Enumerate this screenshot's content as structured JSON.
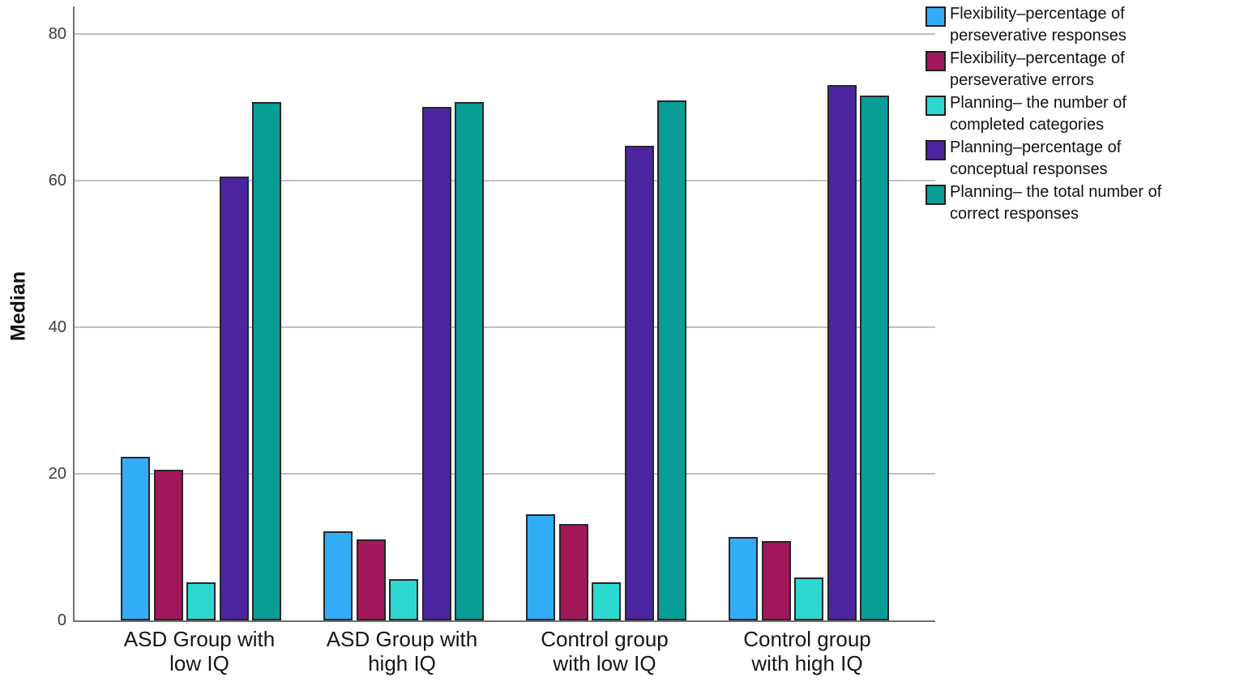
{
  "chart_data": {
    "type": "bar",
    "title": "",
    "xlabel": "",
    "ylabel": "Median",
    "ylim": [
      0,
      84
    ],
    "yticks": [
      0,
      20,
      40,
      60,
      80
    ],
    "grid": true,
    "legend_position": "top-right",
    "categories": [
      "ASD Group with low IQ",
      "ASD Group with high IQ",
      "Control group with low IQ",
      "Control group with high IQ"
    ],
    "category_label_lines": [
      [
        "ASD Group with",
        "low IQ"
      ],
      [
        "ASD Group with",
        "high IQ"
      ],
      [
        "Control group",
        "with low IQ"
      ],
      [
        "Control group",
        "with high IQ"
      ]
    ],
    "series": [
      {
        "name": "Flexibility–percentage of perseverative responses",
        "label_lines": [
          "Flexibility–percentage of",
          "perseverative responses"
        ],
        "color": "#33ACF7",
        "values": [
          22.3,
          12.2,
          14.5,
          11.4
        ]
      },
      {
        "name": "Flexibility–percentage of perseverative errors",
        "label_lines": [
          "Flexibility–percentage of",
          "perseverative errors"
        ],
        "color": "#A1185A",
        "values": [
          20.6,
          11.1,
          13.1,
          10.8
        ]
      },
      {
        "name": "Planning– the number of completed categories",
        "label_lines": [
          "Planning– the number of",
          "completed categories"
        ],
        "color": "#2ED8D0",
        "values": [
          5.2,
          5.6,
          5.2,
          5.9
        ]
      },
      {
        "name": "Planning–percentage of conceptual responses",
        "label_lines": [
          "Planning–percentage of",
          "conceptual responses"
        ],
        "color": "#4B25A0",
        "values": [
          60.5,
          70.1,
          64.8,
          73
        ]
      },
      {
        "name": "Planning– the total number of correct responses",
        "label_lines": [
          "Planning– the total number of",
          "correct responses"
        ],
        "color": "#089E96",
        "values": [
          70.7,
          70.7,
          70.9,
          71.6
        ]
      }
    ],
    "colors": {
      "bar_border": "#26262a",
      "gridline": "#ababab",
      "axis": "#6f6f6f",
      "background": "#ffffff",
      "text": "#161616"
    }
  }
}
